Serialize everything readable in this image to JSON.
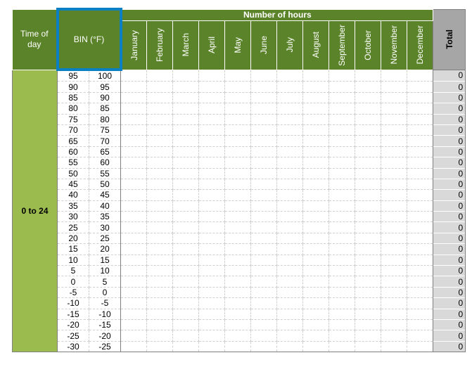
{
  "header": {
    "time_of_day": "Time of day",
    "bin": "BIN (°F)",
    "number_of_hours": "Number of hours",
    "total": "Total",
    "months": [
      "January",
      "February",
      "March",
      "April",
      "May",
      "June",
      "July",
      "August",
      "September",
      "October",
      "November",
      "December"
    ]
  },
  "time_of_day_value": "0 to 24",
  "rows": [
    {
      "low": "95",
      "high": "100",
      "total": "0"
    },
    {
      "low": "90",
      "high": "95",
      "total": "0"
    },
    {
      "low": "85",
      "high": "90",
      "total": "0"
    },
    {
      "low": "80",
      "high": "85",
      "total": "0"
    },
    {
      "low": "75",
      "high": "80",
      "total": "0"
    },
    {
      "low": "70",
      "high": "75",
      "total": "0"
    },
    {
      "low": "65",
      "high": "70",
      "total": "0"
    },
    {
      "low": "60",
      "high": "65",
      "total": "0"
    },
    {
      "low": "55",
      "high": "60",
      "total": "0"
    },
    {
      "low": "50",
      "high": "55",
      "total": "0"
    },
    {
      "low": "45",
      "high": "50",
      "total": "0"
    },
    {
      "low": "40",
      "high": "45",
      "total": "0"
    },
    {
      "low": "35",
      "high": "40",
      "total": "0"
    },
    {
      "low": "30",
      "high": "35",
      "total": "0"
    },
    {
      "low": "25",
      "high": "30",
      "total": "0"
    },
    {
      "low": "20",
      "high": "25",
      "total": "0"
    },
    {
      "low": "15",
      "high": "20",
      "total": "0"
    },
    {
      "low": "10",
      "high": "15",
      "total": "0"
    },
    {
      "low": "5",
      "high": "10",
      "total": "0"
    },
    {
      "low": "0",
      "high": "5",
      "total": "0"
    },
    {
      "low": "-5",
      "high": "0",
      "total": "0"
    },
    {
      "low": "-10",
      "high": "-5",
      "total": "0"
    },
    {
      "low": "-15",
      "high": "-10",
      "total": "0"
    },
    {
      "low": "-20",
      "high": "-15",
      "total": "0"
    },
    {
      "low": "-25",
      "high": "-20",
      "total": "0"
    },
    {
      "low": "-30",
      "high": "-25",
      "total": "0"
    }
  ],
  "colors": {
    "header_green": "#5b842a",
    "light_green": "#9bbb4f",
    "selection": "#0a7fc4",
    "total_gray": "#a6a6a6"
  }
}
